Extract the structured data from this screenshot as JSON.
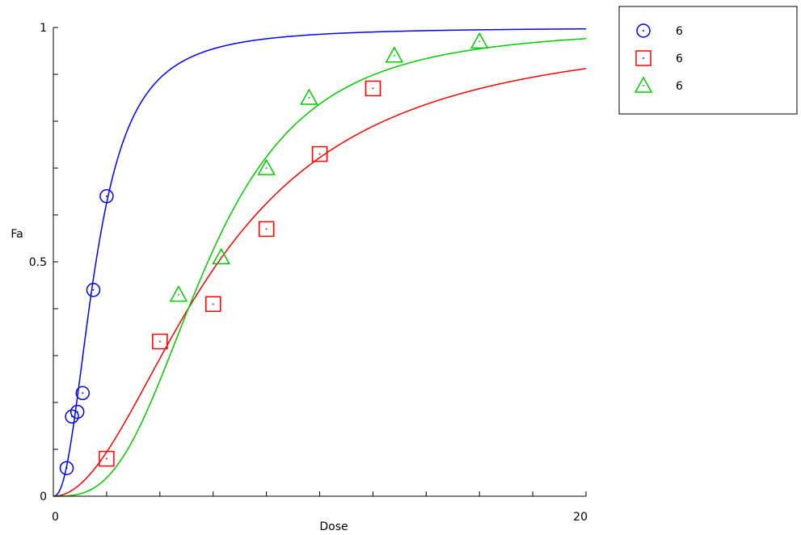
{
  "chart_data": {
    "type": "scatter",
    "title": "",
    "xlabel": "Dose",
    "ylabel": "Fa",
    "xlim": [
      0,
      20
    ],
    "ylim": [
      0,
      1
    ],
    "x_tick_labels": [
      {
        "value": 0,
        "label": "0"
      },
      {
        "value": 20,
        "label": "20"
      }
    ],
    "y_tick_labels": [
      {
        "value": 0,
        "label": "0"
      },
      {
        "value": 0.5,
        "label": "0.5"
      },
      {
        "value": 1,
        "label": "1"
      }
    ],
    "x_minor_ticks": [
      0,
      2,
      4,
      6,
      8,
      10,
      12,
      14,
      16,
      18,
      20
    ],
    "y_minor_ticks": [
      0,
      0.1,
      0.2,
      0.3,
      0.4,
      0.5,
      0.6,
      0.7,
      0.8,
      0.9,
      1
    ],
    "grid": false,
    "legend_position": "top-right",
    "series": [
      {
        "name": "6",
        "marker": "circle",
        "color": "#0000ff",
        "points": [
          {
            "x": 0.5,
            "y": 0.06
          },
          {
            "x": 0.7,
            "y": 0.17
          },
          {
            "x": 0.9,
            "y": 0.18
          },
          {
            "x": 1.1,
            "y": 0.22
          },
          {
            "x": 1.5,
            "y": 0.44
          },
          {
            "x": 2.0,
            "y": 0.64
          }
        ],
        "fit": {
          "dm": 1.6,
          "m": 2.3
        }
      },
      {
        "name": "6",
        "marker": "square",
        "color": "#ff0000",
        "points": [
          {
            "x": 2.0,
            "y": 0.08
          },
          {
            "x": 4.0,
            "y": 0.33
          },
          {
            "x": 6.0,
            "y": 0.41
          },
          {
            "x": 8.0,
            "y": 0.57
          },
          {
            "x": 10.0,
            "y": 0.73
          },
          {
            "x": 12.0,
            "y": 0.87
          }
        ],
        "fit": {
          "dm": 6.2,
          "m": 2.0
        }
      },
      {
        "name": "6",
        "marker": "triangle",
        "color": "#00cc00",
        "points": [
          {
            "x": 4.7,
            "y": 0.43
          },
          {
            "x": 6.3,
            "y": 0.51
          },
          {
            "x": 8.0,
            "y": 0.7
          },
          {
            "x": 9.6,
            "y": 0.85
          },
          {
            "x": 12.8,
            "y": 0.94
          },
          {
            "x": 16.0,
            "y": 0.97
          }
        ],
        "fit": {
          "dm": 5.8,
          "m": 3.0
        }
      }
    ]
  }
}
